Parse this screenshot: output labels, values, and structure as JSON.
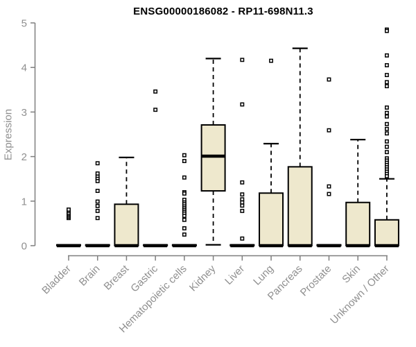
{
  "figure": {
    "title": "ENSG00000186082 - RP11-698N11.3",
    "y_axis_label": "Expression"
  },
  "chart_data": {
    "type": "boxplot",
    "title": "ENSG00000186082 - RP11-698N11.3",
    "xlabel": "",
    "ylabel": "Expression",
    "ylim": [
      0,
      5
    ],
    "yticks": [
      0,
      1,
      2,
      3,
      4,
      5
    ],
    "grid": false,
    "legend": "none",
    "categories": [
      "Bladder",
      "Brain",
      "Breast",
      "Gastric",
      "Hematopoietic cells",
      "Kidney",
      "Liver",
      "Lung",
      "Pancreas",
      "Prostate",
      "Skin",
      "Unknown / Other"
    ],
    "series": [
      {
        "name": "Bladder",
        "q1": 0,
        "median": 0,
        "q3": 0.02,
        "whisker_low": 0,
        "whisker_high": 0.02,
        "outliers": [
          0.62,
          0.65,
          0.68,
          0.71,
          0.74,
          0.78,
          0.81
        ]
      },
      {
        "name": "Brain",
        "q1": 0,
        "median": 0,
        "q3": 0.02,
        "whisker_low": 0,
        "whisker_high": 0.02,
        "outliers": [
          1.85,
          1.62,
          1.55,
          1.5,
          1.45,
          1.23,
          0.99,
          0.89,
          0.78,
          0.62
        ]
      },
      {
        "name": "Breast",
        "q1": 0,
        "median": 0,
        "q3": 0.93,
        "whisker_low": 0,
        "whisker_high": 1.98,
        "outliers": []
      },
      {
        "name": "Gastric",
        "q1": 0,
        "median": 0,
        "q3": 0.02,
        "whisker_low": 0,
        "whisker_high": 0.02,
        "outliers": [
          3.46,
          3.05
        ]
      },
      {
        "name": "Hematopoietic cells",
        "q1": 0,
        "median": 0,
        "q3": 0.02,
        "whisker_low": 0,
        "whisker_high": 0.02,
        "outliers": [
          2.03,
          1.9,
          1.53,
          1.2,
          1.17,
          1.03,
          0.97,
          0.93,
          0.88,
          0.84,
          0.8,
          0.76,
          0.72,
          0.67,
          0.58,
          0.39,
          0.25
        ]
      },
      {
        "name": "Kidney",
        "q1": 1.23,
        "median": 2.01,
        "q3": 2.71,
        "whisker_low": 0.02,
        "whisker_high": 4.2,
        "outliers": []
      },
      {
        "name": "Liver",
        "q1": 0,
        "median": 0,
        "q3": 0.02,
        "whisker_low": 0,
        "whisker_high": 0.02,
        "outliers": [
          4.17,
          3.17,
          1.42,
          1.15,
          1.04,
          0.97,
          0.9,
          0.78,
          0.16
        ]
      },
      {
        "name": "Lung",
        "q1": 0,
        "median": 0,
        "q3": 1.18,
        "whisker_low": 0,
        "whisker_high": 2.29,
        "outliers": [
          4.15
        ]
      },
      {
        "name": "Pancreas",
        "q1": 0,
        "median": 0,
        "q3": 1.77,
        "whisker_low": 0,
        "whisker_high": 4.43,
        "outliers": []
      },
      {
        "name": "Prostate",
        "q1": 0,
        "median": 0,
        "q3": 0.02,
        "whisker_low": 0,
        "whisker_high": 0.02,
        "outliers": [
          3.73,
          2.59,
          1.33,
          1.16
        ]
      },
      {
        "name": "Skin",
        "q1": 0,
        "median": 0,
        "q3": 0.97,
        "whisker_low": 0,
        "whisker_high": 2.38,
        "outliers": []
      },
      {
        "name": "Unknown / Other",
        "q1": 0,
        "median": 0,
        "q3": 0.58,
        "whisker_low": 0,
        "whisker_high": 1.5,
        "outliers": [
          4.85,
          4.82,
          4.27,
          4.05,
          3.83,
          3.67,
          3.58,
          3.1,
          2.98,
          2.9,
          2.73,
          2.62,
          2.52,
          2.34,
          2.22,
          2.1,
          1.96,
          1.91,
          1.86,
          1.81,
          1.76,
          1.71,
          1.66,
          1.61,
          1.56
        ]
      }
    ],
    "colors": {
      "background": "#FFFFFF",
      "box_fill": "#EEE8CD",
      "box_border": "#000000",
      "median": "#000000",
      "whisker": "#000000",
      "outlier": "#000000",
      "axis_line": "#7e7e7e",
      "tick_label": "#8f8f8f",
      "title": "#000000"
    }
  }
}
